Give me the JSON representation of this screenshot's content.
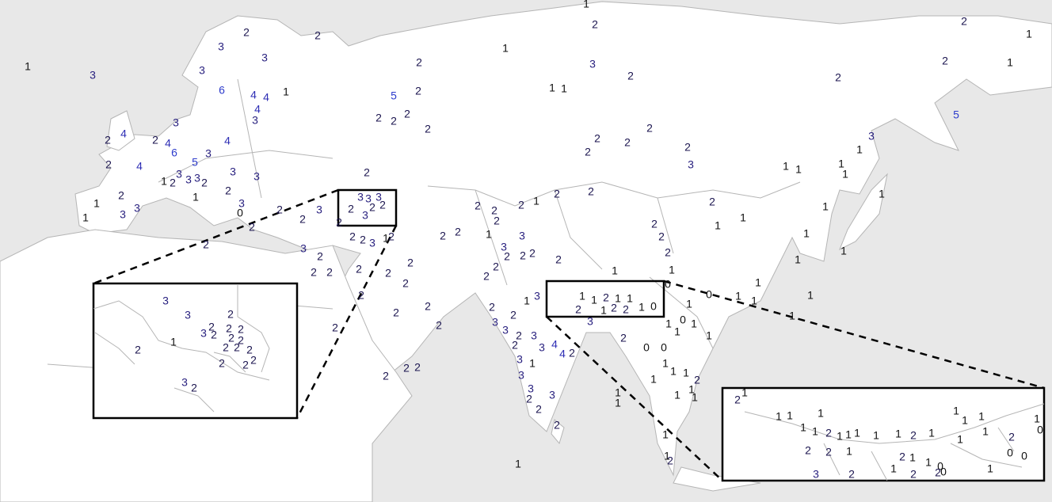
{
  "labels": [
    1,
    3,
    2,
    2,
    3,
    3,
    3,
    6,
    4,
    4,
    1,
    4,
    3,
    3,
    4,
    2,
    2,
    4,
    4,
    6,
    3,
    5,
    2,
    4,
    3,
    1,
    2,
    3,
    3,
    2,
    3,
    3,
    2,
    1,
    2,
    1,
    3,
    3,
    1,
    3,
    0,
    2,
    2,
    2,
    3,
    2,
    3,
    2,
    2,
    2,
    2,
    2,
    5,
    2,
    2,
    2,
    2,
    2,
    2,
    1,
    1,
    1,
    3,
    2,
    1,
    2,
    2,
    1,
    2,
    1,
    2,
    5,
    3,
    1,
    2,
    2,
    2,
    2,
    2,
    3,
    1,
    1,
    1,
    1,
    1,
    2,
    2,
    1,
    2,
    2,
    2,
    2,
    2,
    2,
    1,
    2,
    1,
    1,
    1,
    1,
    1,
    1,
    1,
    1,
    0,
    1,
    1,
    1,
    2,
    1,
    2,
    2,
    2,
    2,
    2,
    2,
    2,
    2,
    2,
    2,
    3,
    3,
    2,
    2,
    2,
    2,
    1,
    3,
    2,
    3,
    2,
    3,
    2,
    2,
    3,
    3,
    4,
    4,
    2,
    1,
    3,
    3,
    3,
    2,
    2,
    3,
    2,
    1,
    2,
    2,
    2,
    1,
    1,
    1,
    2,
    1,
    2,
    0,
    0,
    1,
    1,
    1,
    1,
    2,
    1,
    1,
    1,
    1,
    0,
    1,
    1,
    1,
    1,
    2,
    2,
    1,
    0,
    2,
    3,
    3,
    3,
    2,
    2,
    3,
    2,
    2,
    2,
    3,
    2,
    1,
    1,
    1,
    2,
    1,
    1,
    2,
    3,
    1,
    2,
    2,
    1,
    0,
    3,
    3,
    2,
    2,
    2,
    2,
    3,
    2,
    2,
    2,
    2,
    1,
    2,
    2,
    2,
    2,
    2,
    2,
    3,
    2,
    2,
    1,
    1,
    1,
    1,
    1,
    1,
    2,
    1,
    1,
    1,
    2,
    2,
    1,
    1,
    1,
    2,
    1,
    1,
    1,
    1,
    1,
    1,
    2,
    0,
    0,
    2,
    1,
    1,
    0,
    1,
    2,
    2,
    0,
    2,
    3,
    1,
    0,
    1
  ],
  "value_colors": {
    "0": "#111111",
    "1": "#111111",
    "2": "#1c1650",
    "3": "#2a2280",
    "4": "#2d2db4",
    "5": "#2e3ccc",
    "6": "#2e3ccc"
  }
}
